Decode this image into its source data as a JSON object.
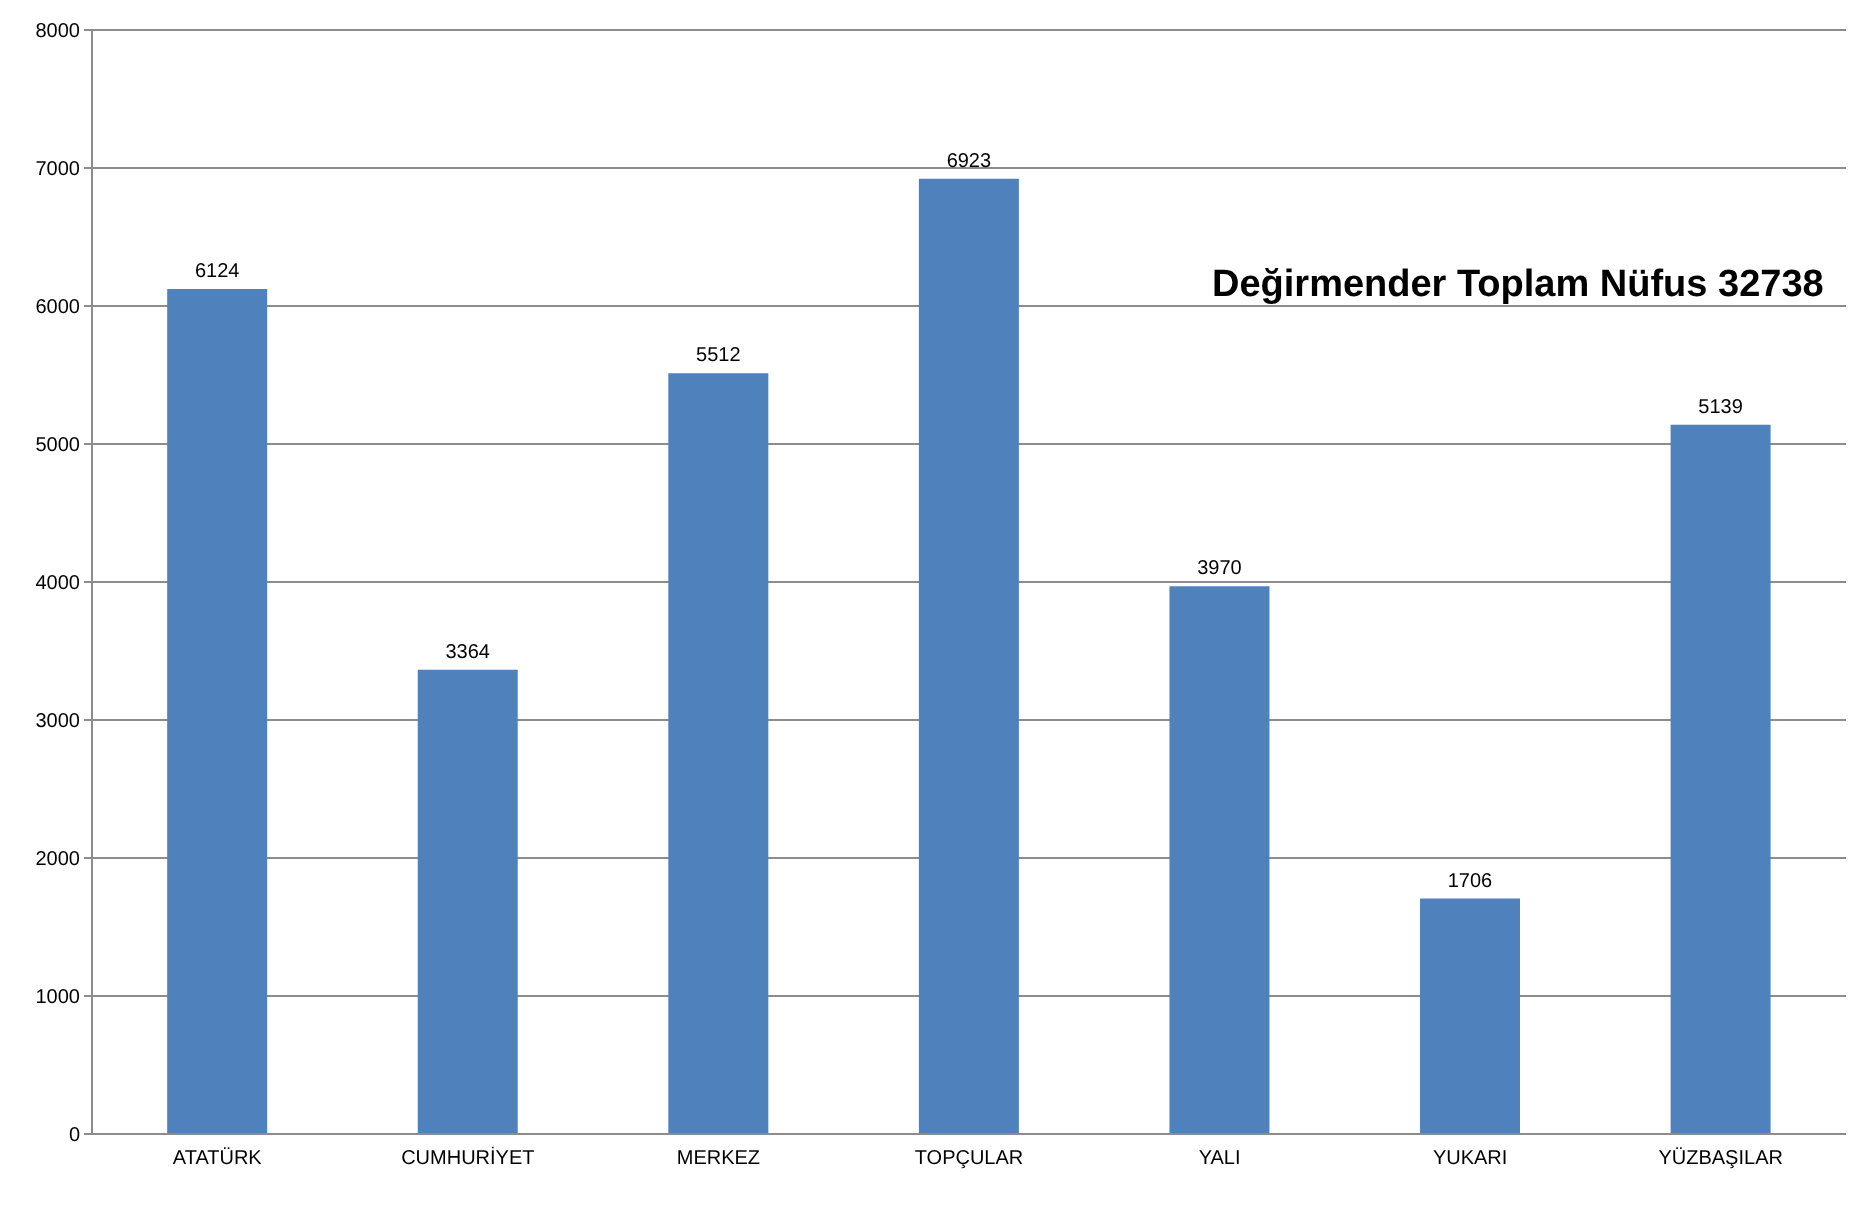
{
  "chart_data": {
    "type": "bar",
    "title": "Değirmender Toplam Nüfus 32738",
    "categories": [
      "ATATÜRK",
      "CUMHURİYET",
      "MERKEZ",
      "TOPÇULAR",
      "YALI",
      "YUKARI",
      "YÜZBAŞILAR"
    ],
    "values": [
      6124,
      3364,
      5512,
      6923,
      3970,
      1706,
      5139
    ],
    "color": "#4f81bd",
    "ylim": [
      0,
      8000
    ],
    "yticks": [
      0,
      1000,
      2000,
      3000,
      4000,
      5000,
      6000,
      7000,
      8000
    ],
    "grid": "y",
    "data_labels": true,
    "legend": false
  }
}
